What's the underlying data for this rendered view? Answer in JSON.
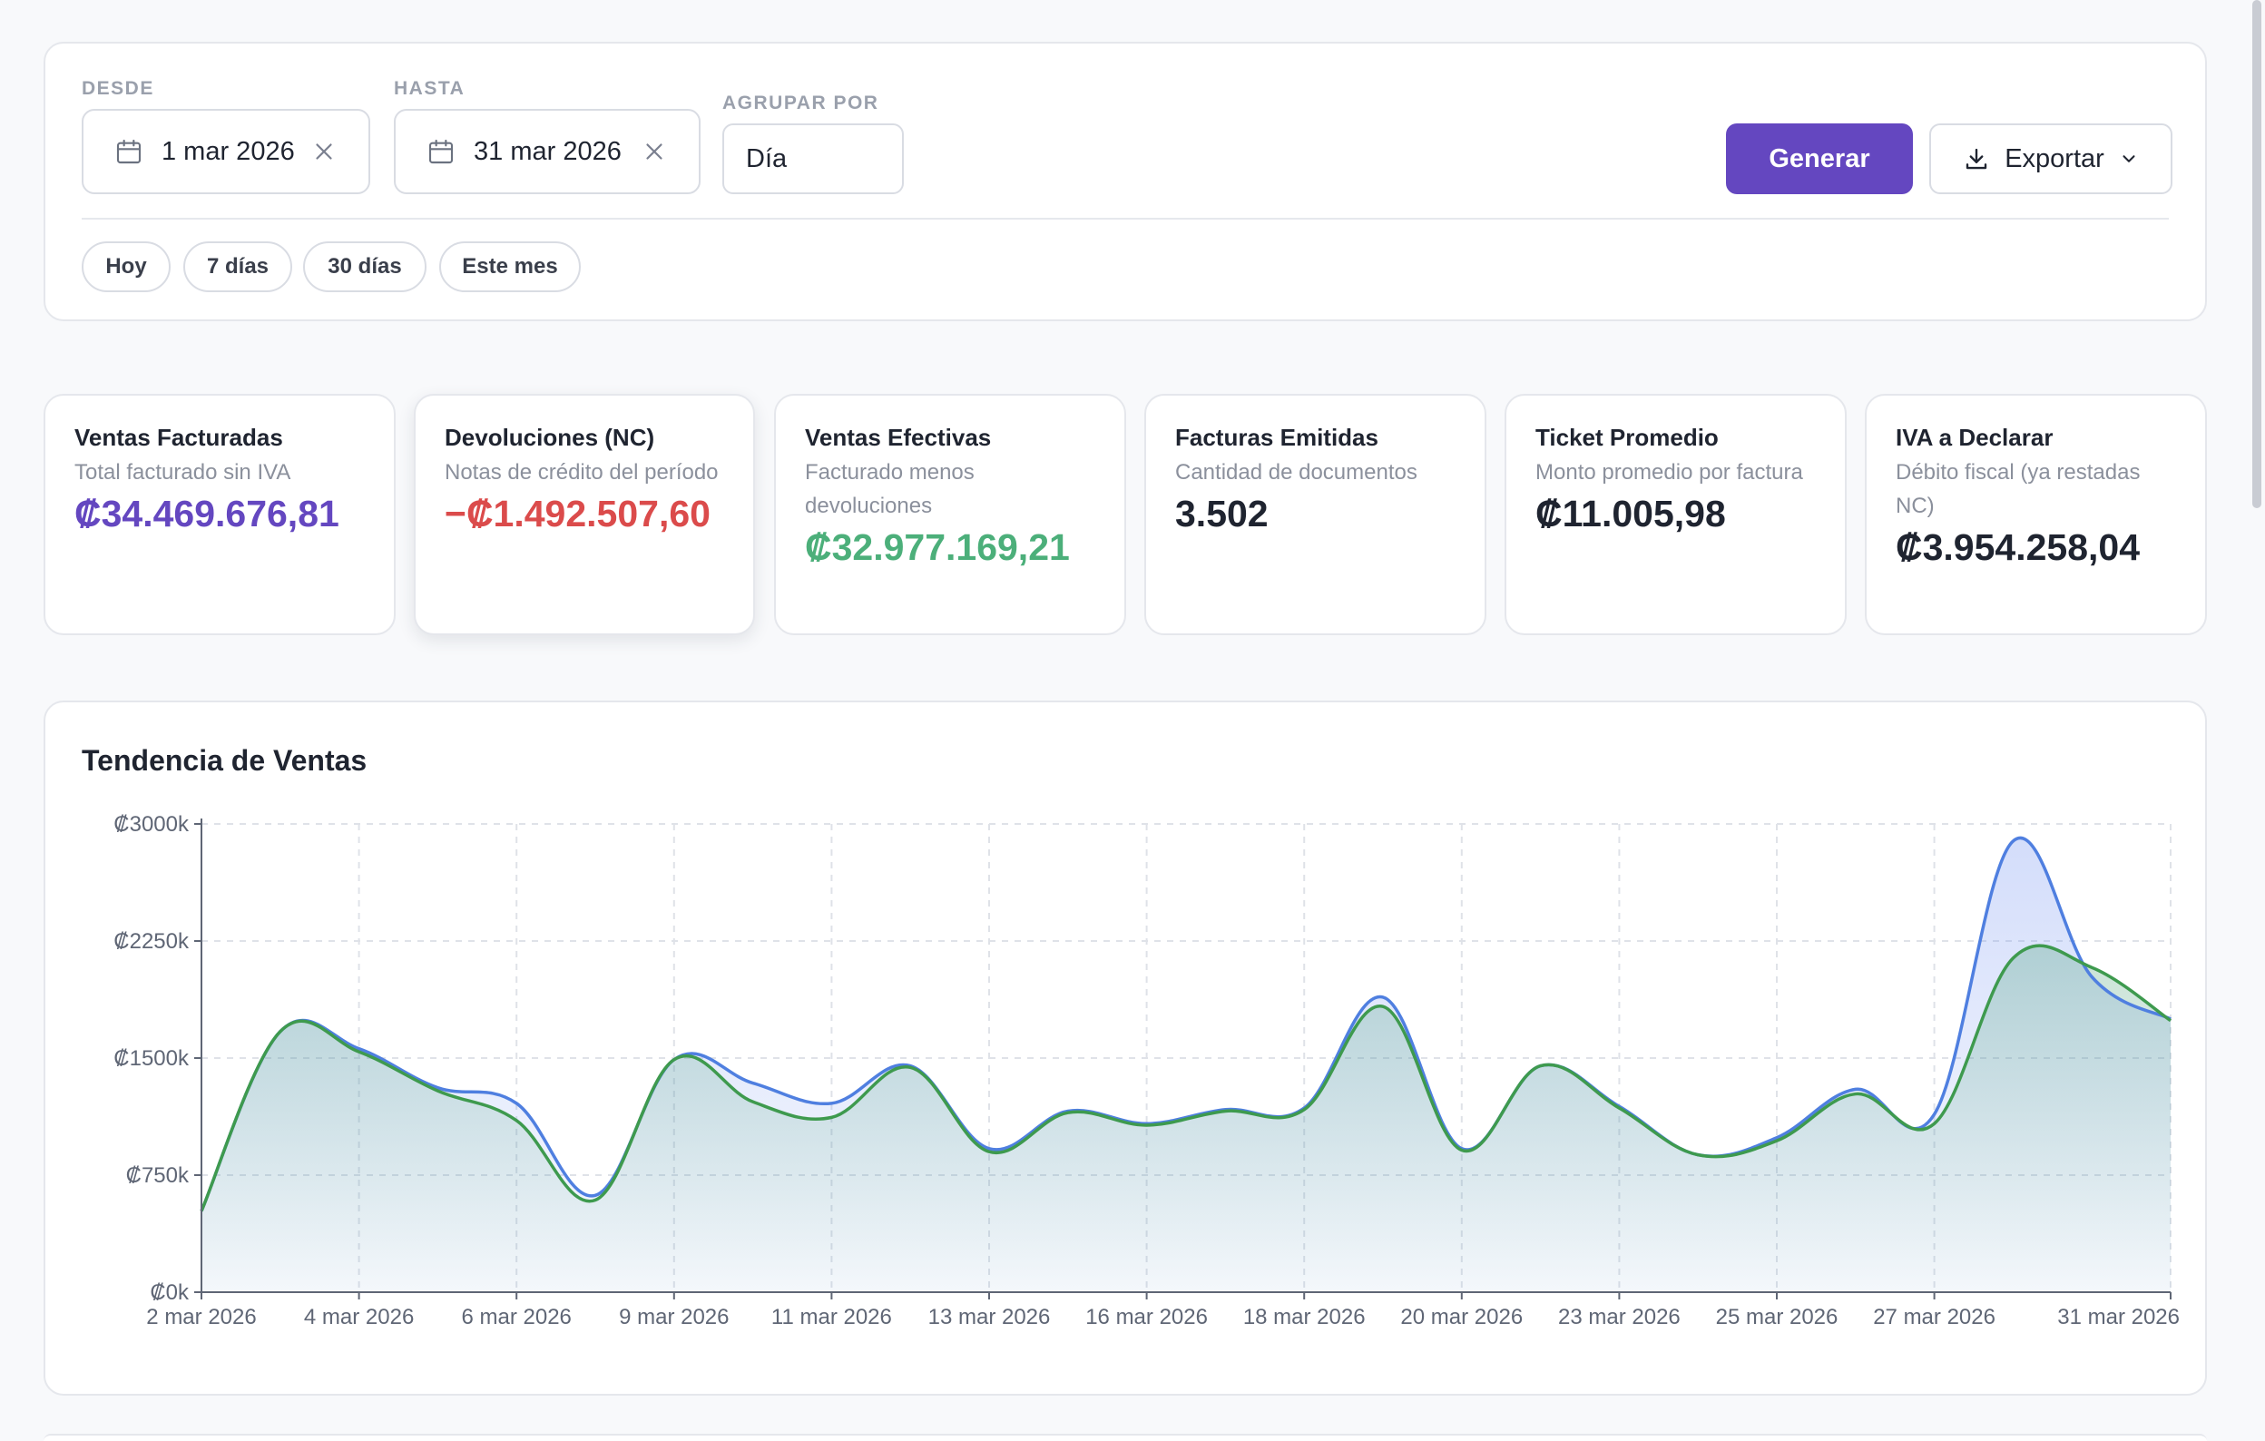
{
  "filters": {
    "from": {
      "label": "DESDE",
      "value": "1 mar 2026"
    },
    "to": {
      "label": "HASTA",
      "value": "31 mar 2026"
    },
    "group": {
      "label": "AGRUPAR POR",
      "value": "Día"
    },
    "generate_label": "Generar",
    "export_label": "Exportar",
    "quick_ranges": [
      "Hoy",
      "7 días",
      "30 días",
      "Este mes"
    ]
  },
  "colors": {
    "primary": "#6447c0",
    "negative": "#db4b4b",
    "positive": "#4caf7a",
    "line_blue": "#4f7fe0",
    "line_green": "#3e9a4e"
  },
  "kpis": [
    {
      "title": "Ventas Facturadas",
      "subtitle": "Total facturado sin IVA",
      "value": "₡34.469.676,81",
      "tone": "primary"
    },
    {
      "title": "Devoluciones (NC)",
      "subtitle": "Notas de crédito del período",
      "value": "−₡1.492.507,60",
      "tone": "negative"
    },
    {
      "title": "Ventas Efectivas",
      "subtitle": "Facturado menos devoluciones",
      "value": "₡32.977.169,21",
      "tone": "positive"
    },
    {
      "title": "Facturas Emitidas",
      "subtitle": "Cantidad de documentos",
      "value": "3.502",
      "tone": "neutral"
    },
    {
      "title": "Ticket Promedio",
      "subtitle": "Monto promedio por factura",
      "value": "₡11.005,98",
      "tone": "neutral"
    },
    {
      "title": "IVA a Declarar",
      "subtitle": "Débito fiscal (ya restadas NC)",
      "value": "₡3.954.258,04",
      "tone": "neutral"
    }
  ],
  "chart": {
    "title": "Tendencia de Ventas"
  },
  "chart_data": {
    "type": "area",
    "title": "Tendencia de Ventas",
    "x": [
      "2 mar 2026",
      "3 mar 2026",
      "4 mar 2026",
      "5 mar 2026",
      "6 mar 2026",
      "7 mar 2026",
      "9 mar 2026",
      "10 mar 2026",
      "11 mar 2026",
      "12 mar 2026",
      "13 mar 2026",
      "14 mar 2026",
      "16 mar 2026",
      "17 mar 2026",
      "18 mar 2026",
      "19 mar 2026",
      "20 mar 2026",
      "21 mar 2026",
      "23 mar 2026",
      "24 mar 2026",
      "25 mar 2026",
      "26 mar 2026",
      "27 mar 2026",
      "28 mar 2026",
      "30 mar 2026",
      "31 mar 2026"
    ],
    "x_ticks": [
      "2 mar 2026",
      "4 mar 2026",
      "6 mar 2026",
      "9 mar 2026",
      "11 mar 2026",
      "13 mar 2026",
      "16 mar 2026",
      "18 mar 2026",
      "20 mar 2026",
      "23 mar 2026",
      "25 mar 2026",
      "27 mar 2026",
      "31 mar 2026"
    ],
    "y_ticks": [
      "₡0k",
      "₡750k",
      "₡1500k",
      "₡2250k",
      "₡3000k"
    ],
    "ylim": [
      0,
      3000
    ],
    "y_unit": "k",
    "grid": true,
    "series": [
      {
        "values": [
          520,
          1670,
          1560,
          1310,
          1210,
          620,
          1490,
          1340,
          1210,
          1450,
          920,
          1160,
          1080,
          1170,
          1180,
          1890,
          920,
          1450,
          1190,
          880,
          990,
          1300,
          1140,
          2890,
          2020,
          1750
        ]
      },
      {
        "values": [
          520,
          1670,
          1540,
          1290,
          1100,
          590,
          1490,
          1220,
          1120,
          1440,
          900,
          1150,
          1070,
          1160,
          1170,
          1830,
          910,
          1450,
          1180,
          880,
          970,
          1270,
          1080,
          2140,
          2080,
          1740
        ]
      }
    ]
  }
}
